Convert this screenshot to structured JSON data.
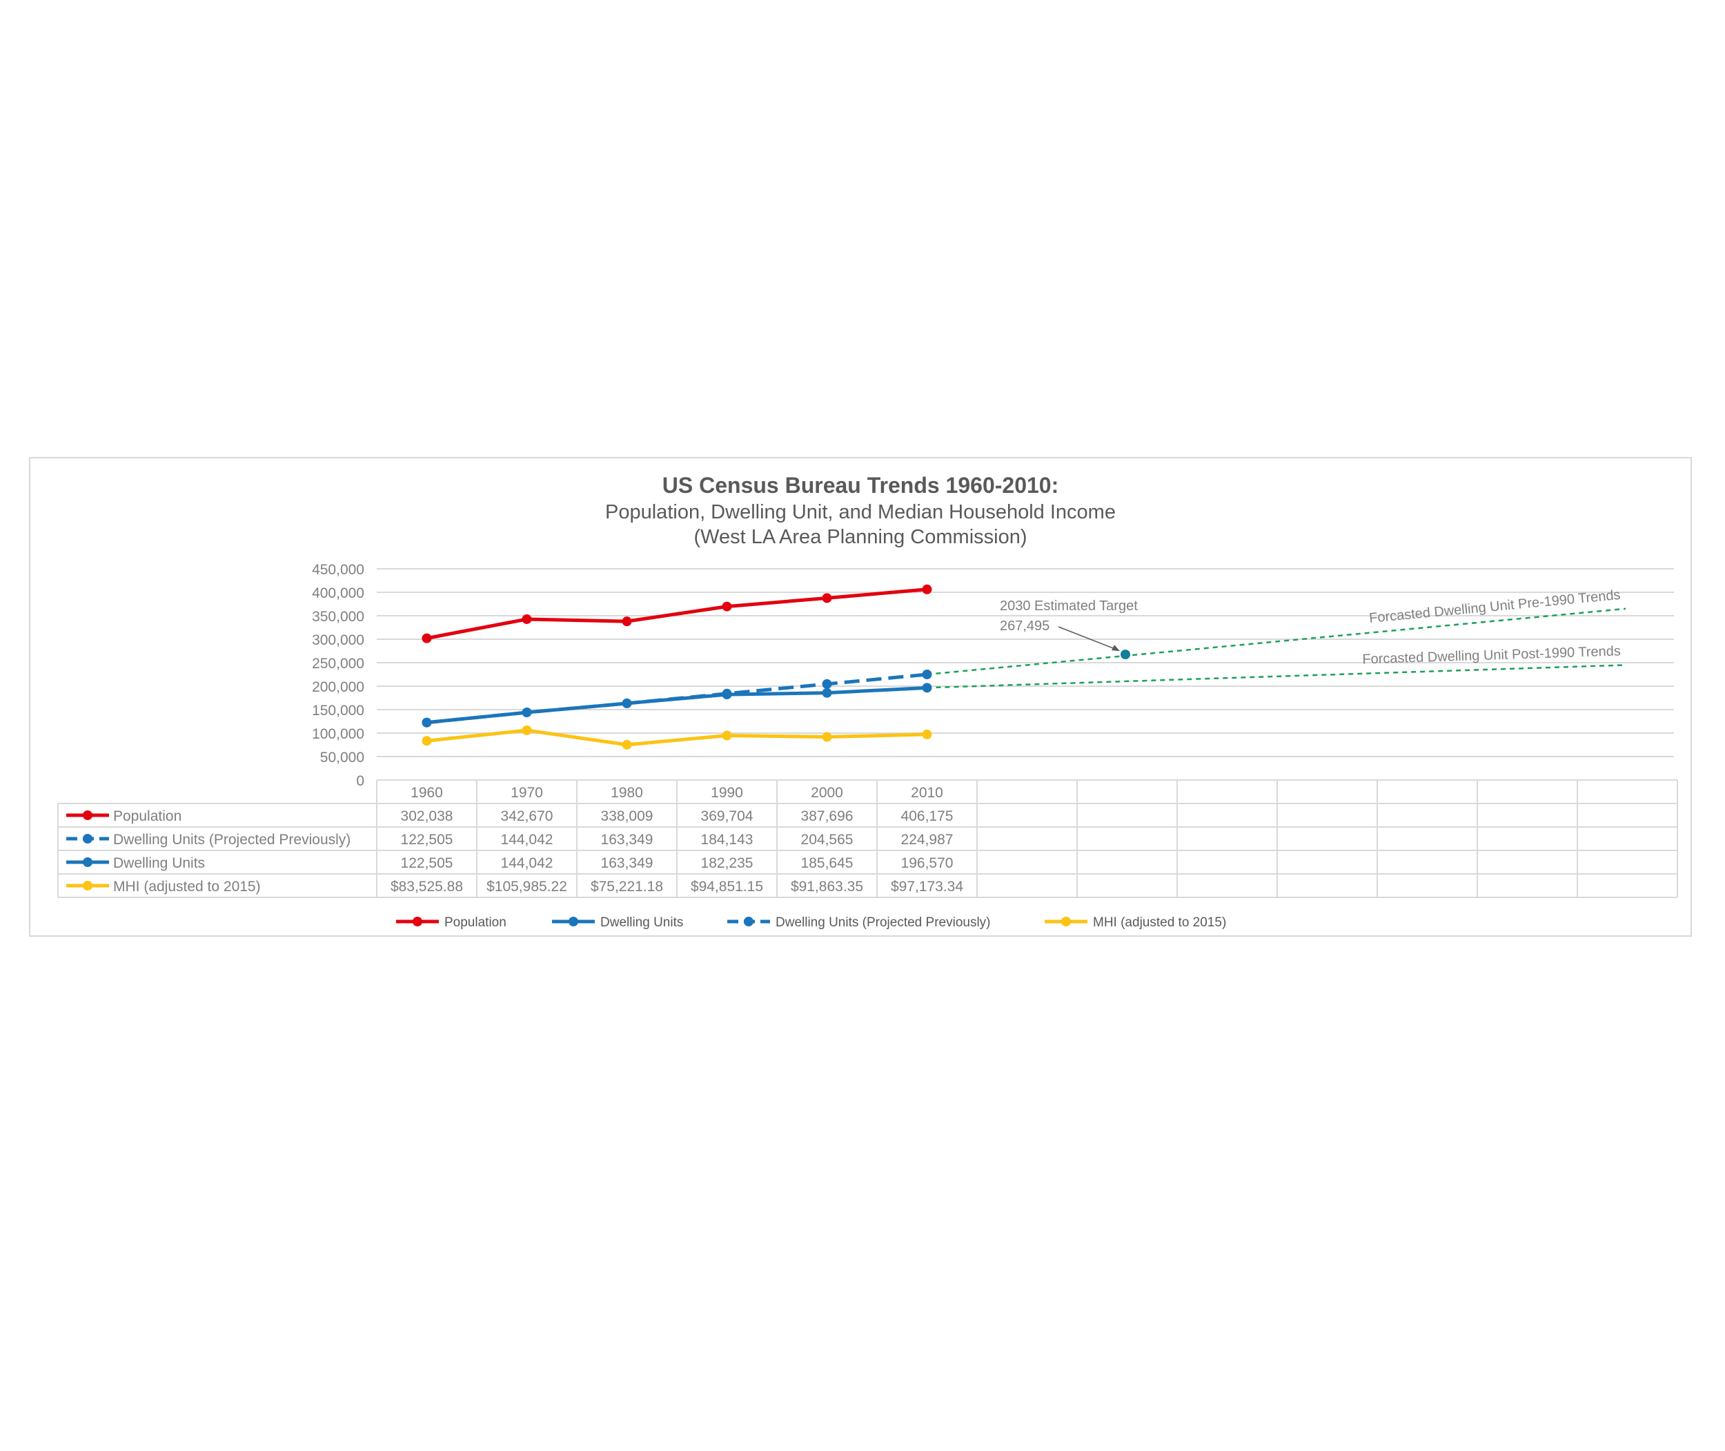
{
  "chart_data": {
    "type": "line",
    "title": "US Census Bureau Trends 1960-2010:",
    "subtitle": "Population, Dwelling Unit, and Median Household Income",
    "subtitle2": "(West LA Area Planning Commission)",
    "categories": [
      "1960",
      "1970",
      "1980",
      "1990",
      "2000",
      "2010"
    ],
    "ylim": [
      0,
      450000
    ],
    "yticks": [
      "450,000",
      "400,000",
      "350,000",
      "300,000",
      "250,000",
      "200,000",
      "150,000",
      "100,000",
      "50,000",
      "0"
    ],
    "ytick_values": [
      450000,
      400000,
      350000,
      300000,
      250000,
      200000,
      150000,
      100000,
      50000,
      0
    ],
    "grid": true,
    "legend_position": "bottom",
    "series": [
      {
        "name": "Population",
        "color": "#e3000f",
        "style": "solid",
        "values": [
          302038,
          342670,
          338009,
          369704,
          387696,
          406175
        ],
        "table_values": [
          "302,038",
          "342,670",
          "338,009",
          "369,704",
          "387,696",
          "406,175"
        ]
      },
      {
        "name": "Dwelling Units (Projected Previously)",
        "color": "#1b75bb",
        "style": "dashed",
        "values": [
          122505,
          144042,
          163349,
          184143,
          204565,
          224987
        ],
        "table_values": [
          "122,505",
          "144,042",
          "163,349",
          "184,143",
          "204,565",
          "224,987"
        ]
      },
      {
        "name": "Dwelling Units",
        "color": "#1b75bb",
        "style": "solid",
        "values": [
          122505,
          144042,
          163349,
          182235,
          185645,
          196570
        ],
        "table_values": [
          "122,505",
          "144,042",
          "163,349",
          "182,235",
          "185,645",
          "196,570"
        ]
      },
      {
        "name": "MHI (adjusted to 2015)",
        "color": "#fcc314",
        "style": "solid",
        "values": [
          83525.88,
          105985.22,
          75221.18,
          94851.15,
          91863.35,
          97173.34
        ],
        "table_values": [
          "$83,525.88",
          "$105,985.22",
          "$75,221.18",
          "$94,851.15",
          "$91,863.35",
          "$97,173.34"
        ]
      }
    ],
    "legend": [
      "Population",
      "Dwelling Units",
      "Dwelling Units (Projected Previously)",
      "MHI (adjusted to 2015)"
    ],
    "forecasts": [
      {
        "name": "Forcasted Dwelling Unit Pre-1990 Trends",
        "color": "#19a05a",
        "from": 224987,
        "to": 365000
      },
      {
        "name": "Forcasted Dwelling Unit Post-1990 Trends",
        "color": "#19a05a",
        "from": 196570,
        "to": 245000
      }
    ],
    "annotation": {
      "label": "2030 Estimated Target",
      "value_label": "267,495",
      "value": 267495,
      "color": "#0f7f9a"
    }
  }
}
